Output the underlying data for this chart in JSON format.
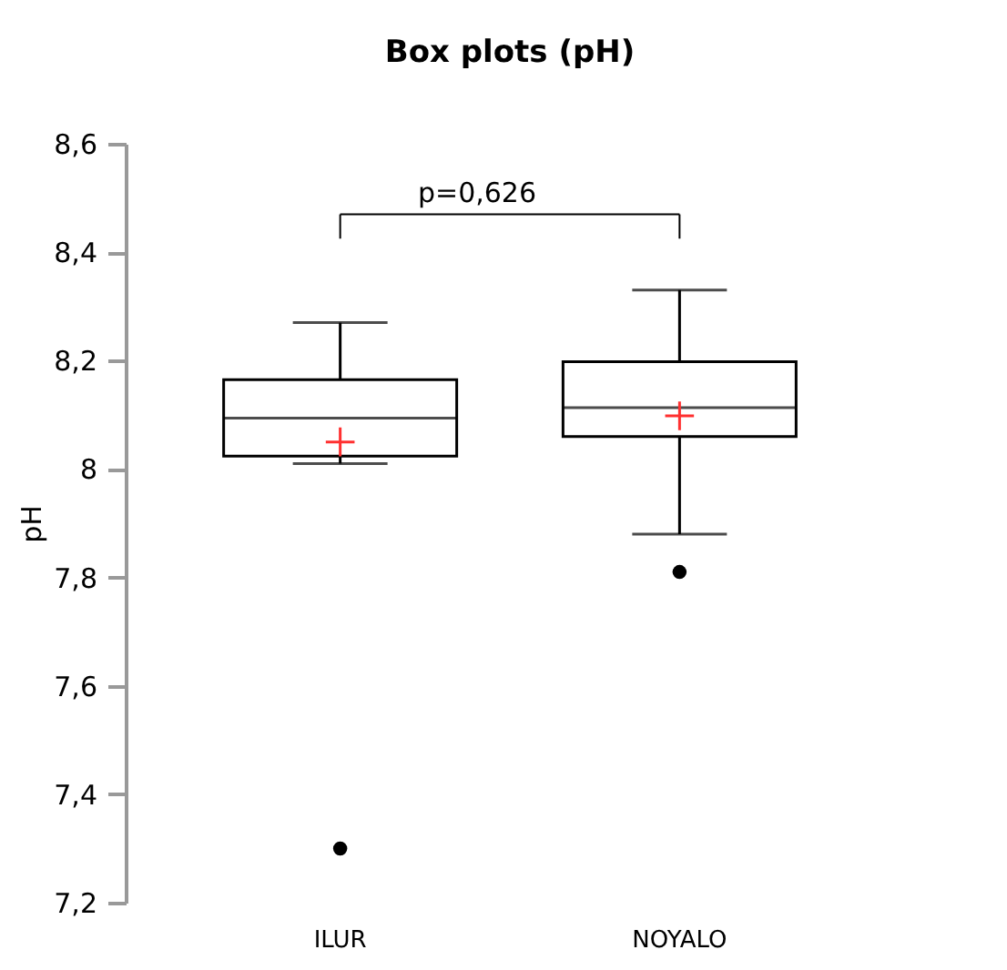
{
  "chart_data": {
    "type": "box",
    "title": "Box plots (pH)",
    "ylabel": "pH",
    "categories": [
      "ILUR",
      "NOYALO"
    ],
    "boxes": [
      {
        "low": 8.01,
        "q1": 8.024,
        "median": 8.094,
        "q3": 8.165,
        "high": 8.27,
        "mean": 8.05,
        "outliers": [
          7.3
        ]
      },
      {
        "low": 7.88,
        "q1": 8.06,
        "median": 8.113,
        "q3": 8.198,
        "high": 8.33,
        "mean": 8.098,
        "outliers": [
          7.81
        ]
      }
    ],
    "ylim": [
      7.2,
      8.6
    ],
    "yticks": [
      {
        "value": 7.2,
        "label": "7,2"
      },
      {
        "value": 7.4,
        "label": "7,4"
      },
      {
        "value": 7.6,
        "label": "7,6"
      },
      {
        "value": 7.8,
        "label": "7,8"
      },
      8,
      {
        "value": 8.2,
        "label": "8,2"
      },
      {
        "value": 8.4,
        "label": "8,4"
      },
      {
        "value": 8.6,
        "label": "8,6"
      }
    ],
    "annotations": [
      "p=0,626"
    ],
    "grid": false
  }
}
